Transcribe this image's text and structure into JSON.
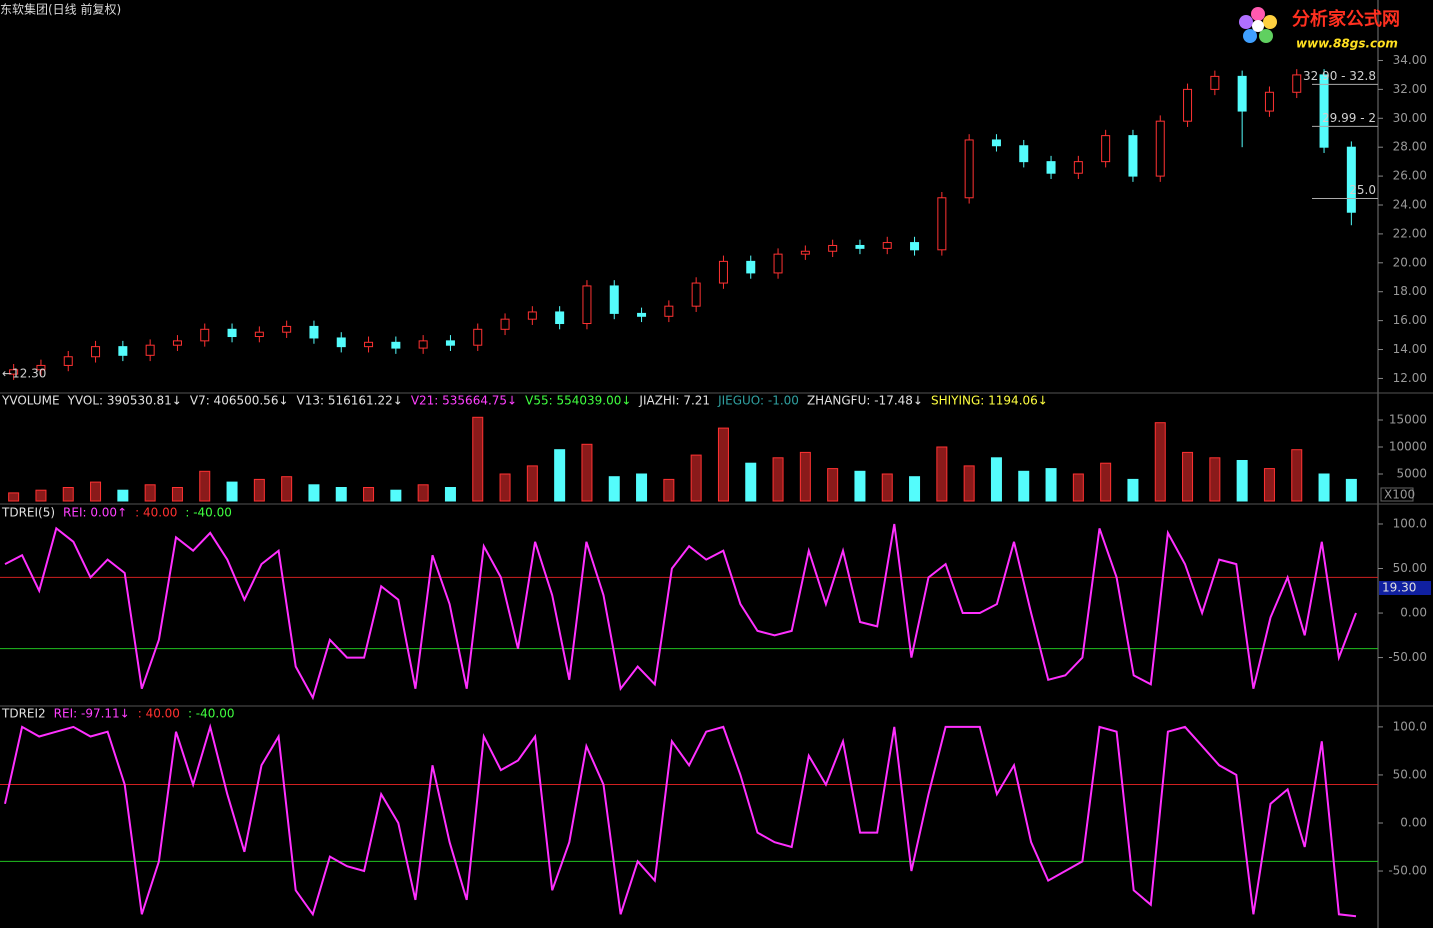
{
  "header": {
    "title": "东软集团(日线 前复权)"
  },
  "watermark": {
    "name": "分析家公式网",
    "url": "www.88gs.com"
  },
  "chart_data": [
    {
      "type": "candlestick",
      "up_color": "#ff3232",
      "down_color": "#54fcfc",
      "open": [
        12.3,
        12.6,
        12.9,
        13.5,
        14.2,
        13.6,
        14.3,
        14.6,
        15.4,
        14.9,
        15.2,
        15.6,
        14.8,
        14.2,
        14.5,
        14.1,
        14.6,
        14.3,
        15.4,
        16.1,
        16.6,
        15.8,
        18.4,
        16.5,
        16.3,
        17.0,
        18.6,
        20.1,
        19.3,
        20.6,
        20.8,
        21.2,
        21.0,
        21.4,
        20.9,
        24.5,
        28.5,
        28.1,
        27.0,
        26.2,
        27.0,
        28.8,
        26.0,
        29.8,
        32.0,
        32.9,
        30.5,
        31.8,
        33.0,
        28.0
      ],
      "high": [
        13.0,
        13.3,
        13.9,
        14.6,
        14.6,
        14.7,
        15.0,
        15.8,
        15.8,
        15.6,
        16.0,
        16.0,
        15.2,
        14.9,
        14.9,
        15.0,
        15.0,
        15.8,
        16.5,
        17.0,
        17.0,
        18.8,
        18.8,
        16.9,
        17.4,
        19.0,
        20.5,
        20.5,
        21.0,
        21.2,
        21.6,
        21.6,
        21.8,
        21.8,
        24.9,
        28.9,
        28.9,
        28.5,
        27.4,
        27.4,
        29.2,
        29.2,
        30.2,
        32.4,
        33.3,
        33.3,
        32.2,
        33.4,
        33.4,
        28.4
      ],
      "low": [
        11.9,
        12.2,
        12.5,
        13.1,
        13.2,
        13.2,
        13.9,
        14.2,
        14.5,
        14.5,
        14.8,
        14.4,
        13.8,
        13.8,
        13.7,
        13.7,
        13.9,
        13.9,
        15.0,
        15.7,
        15.4,
        15.4,
        16.1,
        15.9,
        15.9,
        16.6,
        18.2,
        18.9,
        18.9,
        20.2,
        20.4,
        20.6,
        20.6,
        20.5,
        20.5,
        24.1,
        27.7,
        26.6,
        25.8,
        25.8,
        26.6,
        25.6,
        25.6,
        29.4,
        31.6,
        28.0,
        30.1,
        31.4,
        27.6,
        22.6
      ],
      "close": [
        12.6,
        12.9,
        13.5,
        14.2,
        13.6,
        14.3,
        14.6,
        15.4,
        14.9,
        15.2,
        15.6,
        14.8,
        14.2,
        14.5,
        14.1,
        14.6,
        14.3,
        15.4,
        16.1,
        16.6,
        15.8,
        18.4,
        16.5,
        16.3,
        17.0,
        18.6,
        20.1,
        19.3,
        20.6,
        20.8,
        21.2,
        21.0,
        21.4,
        20.9,
        24.5,
        28.5,
        28.1,
        27.0,
        26.2,
        27.0,
        28.8,
        26.0,
        29.8,
        32.0,
        32.9,
        30.5,
        31.8,
        33.0,
        28.0,
        23.5
      ],
      "ylim": [
        11.2,
        36.8
      ],
      "yticks": [
        {
          "value": 12,
          "label": "12.00"
        },
        {
          "value": 14,
          "label": "14.00"
        },
        {
          "value": 16,
          "label": "16.00"
        },
        {
          "value": 18,
          "label": "18.00"
        },
        {
          "value": 20,
          "label": "20.00"
        },
        {
          "value": 22,
          "label": "22.00"
        },
        {
          "value": 24,
          "label": "24.00"
        },
        {
          "value": 26,
          "label": "26.00"
        },
        {
          "value": 28,
          "label": "28.00"
        },
        {
          "value": 30,
          "label": "30.00"
        },
        {
          "value": 32,
          "label": "32.00"
        },
        {
          "value": 34,
          "label": "34.00"
        }
      ],
      "price_labels": [
        {
          "text": "32.90 - 32.8",
          "value": 32.9,
          "side": "right"
        },
        {
          "text": "29.99 - 2",
          "value": 29.99,
          "side": "right"
        },
        {
          "text": "25.0",
          "value": 25.0,
          "side": "right"
        },
        {
          "text": "←12.30",
          "value": 12.3,
          "side": "left"
        }
      ]
    },
    {
      "type": "bar",
      "name": "YVOLUME",
      "unit_label": "X100",
      "legend": [
        {
          "text": "YVOL: 390530.81↓",
          "color": "#e0e0e0"
        },
        {
          "text": "V7: 406500.56↓",
          "color": "#e0e0e0"
        },
        {
          "text": "V13: 516161.22↓",
          "color": "#e0e0e0"
        },
        {
          "text": "V21: 535664.75↓",
          "color": "#ff40ff"
        },
        {
          "text": "V55: 554039.00↓",
          "color": "#40ff40"
        },
        {
          "text": "JIAZHI: 7.21",
          "color": "#e0e0e0"
        },
        {
          "text": "JIEGUO: -1.00",
          "color": "#30a0a0"
        },
        {
          "text": "ZHANGFU: -17.48↓",
          "color": "#e0e0e0"
        },
        {
          "text": "SHIYING: 1194.06↓",
          "color": "#ffff40"
        }
      ],
      "values": [
        1500,
        2000,
        2500,
        3500,
        2000,
        3000,
        2500,
        5500,
        3500,
        4000,
        4500,
        3000,
        2500,
        2500,
        2000,
        3000,
        2500,
        15500,
        5000,
        6500,
        9500,
        10500,
        4500,
        5000,
        4000,
        8500,
        13500,
        7000,
        8000,
        9000,
        6000,
        5500,
        5000,
        4500,
        10000,
        6500,
        8000,
        5500,
        6000,
        5000,
        7000,
        4000,
        14500,
        9000,
        8000,
        7500,
        6000,
        9500,
        5000,
        4000
      ],
      "ylim": [
        0,
        16850
      ],
      "yticks": [
        5000,
        10000,
        15000
      ]
    },
    {
      "type": "line",
      "title": "TDREI(5)",
      "color": "#ff30ff",
      "legend": [
        {
          "text": "REI: 0.00↑",
          "color": "#ff40ff"
        },
        {
          "text": ": 40.00",
          "color": "#ff3030"
        },
        {
          "text": ": -40.00",
          "color": "#40ff40"
        }
      ],
      "values": [
        55,
        65,
        25,
        95,
        80,
        40,
        60,
        45,
        -85,
        -30,
        85,
        70,
        90,
        60,
        15,
        55,
        70,
        -60,
        -95,
        -30,
        -50,
        -50,
        30,
        15,
        -85,
        65,
        10,
        -85,
        75,
        40,
        -40,
        80,
        20,
        -75,
        80,
        20,
        -85,
        -60,
        -80,
        50,
        75,
        60,
        70,
        10,
        -20,
        -25,
        -20,
        70,
        10,
        70,
        -10,
        -15,
        100,
        -50,
        40,
        55,
        0,
        0,
        10,
        80,
        0,
        -75,
        -70,
        -50,
        95,
        40,
        -70,
        -80,
        90,
        55,
        0,
        60,
        55,
        -85,
        -5,
        40,
        -25,
        80,
        -50,
        0
      ],
      "ylim": [
        -101,
        115.7
      ],
      "yticks": [
        {
          "value": 100,
          "label": "100.0"
        },
        {
          "value": 50,
          "label": "50.00"
        },
        {
          "value": 0,
          "label": "0.00"
        },
        {
          "value": -50,
          "label": "-50.00"
        }
      ],
      "ref_lines": [
        {
          "value": 40,
          "color": "#d02020"
        },
        {
          "value": -40,
          "color": "#20c020"
        }
      ],
      "cursor_label": "19.30"
    },
    {
      "type": "line",
      "title": "TDREI2",
      "color": "#ff30ff",
      "legend": [
        {
          "text": "REI: -97.11↓",
          "color": "#ff40ff"
        },
        {
          "text": ": 40.00",
          "color": "#ff3030"
        },
        {
          "text": ": -40.00",
          "color": "#40ff40"
        }
      ],
      "values": [
        20,
        100,
        90,
        95,
        100,
        90,
        95,
        40,
        -95,
        -40,
        95,
        40,
        100,
        30,
        -30,
        60,
        90,
        -70,
        -95,
        -35,
        -45,
        -50,
        30,
        0,
        -80,
        60,
        -20,
        -80,
        90,
        55,
        65,
        90,
        -70,
        -20,
        80,
        40,
        -95,
        -40,
        -60,
        85,
        60,
        95,
        100,
        50,
        -10,
        -20,
        -25,
        70,
        40,
        85,
        -10,
        -10,
        100,
        -50,
        30,
        100,
        100,
        100,
        30,
        60,
        -20,
        -60,
        -50,
        -40,
        100,
        95,
        -70,
        -85,
        95,
        100,
        80,
        60,
        50,
        -95,
        20,
        35,
        -25,
        85,
        -95,
        -97.11
      ],
      "ylim": [
        -107.2,
        115.5
      ],
      "yticks": [
        {
          "value": 100,
          "label": "100.0"
        },
        {
          "value": 50,
          "label": "50.00"
        },
        {
          "value": 0,
          "label": "0.00"
        },
        {
          "value": -50,
          "label": "-50.00"
        }
      ],
      "ref_lines": [
        {
          "value": 40,
          "color": "#d02020"
        },
        {
          "value": -40,
          "color": "#20c020"
        }
      ]
    }
  ]
}
